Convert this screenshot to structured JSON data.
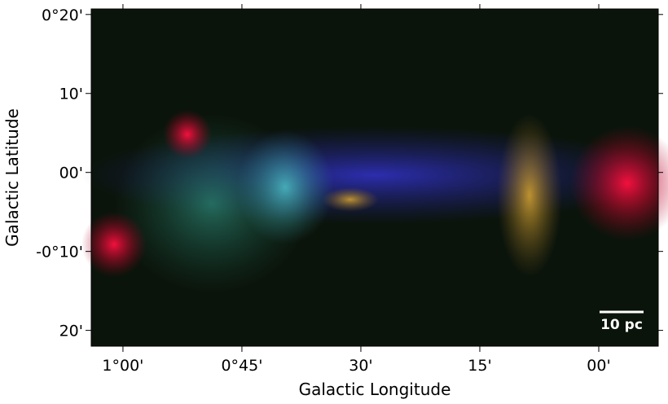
{
  "chart_data": {
    "type": "image",
    "xlabel": "Galactic Longitude",
    "ylabel": "Galactic Latitude",
    "xlim": [
      64,
      -7.5
    ],
    "ylim": [
      -22,
      20.7
    ],
    "xticks": [
      {
        "value": 60,
        "label": "1°00'"
      },
      {
        "value": 45,
        "label": "0°45'"
      },
      {
        "value": 30,
        "label": "30'"
      },
      {
        "value": 15,
        "label": "15'"
      },
      {
        "value": 0,
        "label": "00'"
      }
    ],
    "yticks": [
      {
        "value": 20,
        "label": "0°20'"
      },
      {
        "value": 10,
        "label": "10'"
      },
      {
        "value": 0,
        "label": "00'"
      },
      {
        "value": -10,
        "label": "-0°10'"
      },
      {
        "value": -20,
        "label": "20'"
      }
    ],
    "scale_bar": "10 pc"
  }
}
